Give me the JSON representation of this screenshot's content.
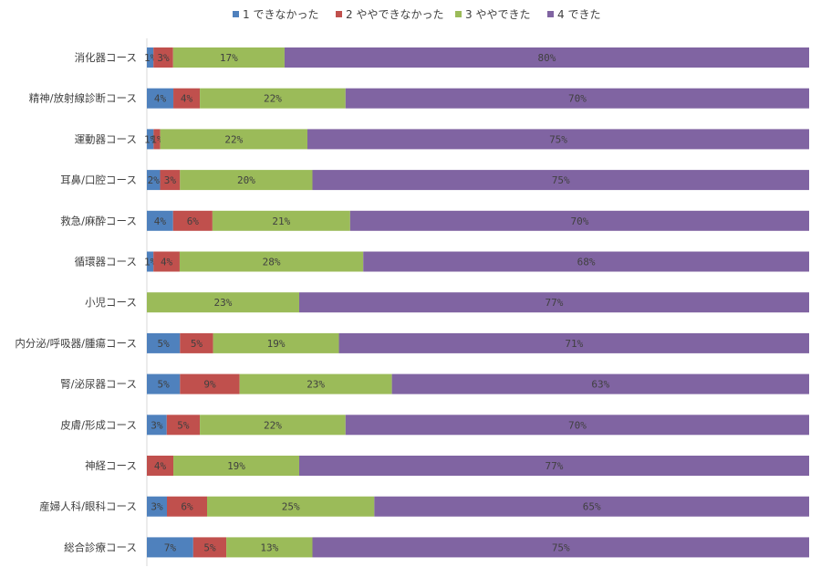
{
  "chart_data": {
    "type": "bar",
    "orientation": "horizontal",
    "stacked": "percent",
    "legend_position": "top",
    "grid": false,
    "categories": [
      "消化器コース",
      "精神/放射線診断コース",
      "運動器コース",
      "耳鼻/口腔コース",
      "救急/麻酔コース",
      "循環器コース",
      "小児コース",
      "内分泌/呼吸器/腫瘍コース",
      "腎/泌尿器コース",
      "皮膚/形成コース",
      "神経コース",
      "産婦人科/眼科コース",
      "総合診療コース"
    ],
    "series": [
      {
        "name": "1 できなかった",
        "color": "#4f81bd",
        "values": [
          1,
          4,
          1,
          2,
          4,
          1,
          0,
          5,
          5,
          3,
          0,
          3,
          7
        ],
        "labels": [
          "1%",
          "4%",
          "1%",
          "2%",
          "4%",
          "1%",
          "",
          "5%",
          "5%",
          "3%",
          "",
          "3%",
          "7%"
        ]
      },
      {
        "name": "2 ややできなかった",
        "color": "#c0504d",
        "values": [
          3,
          4,
          1,
          3,
          6,
          4,
          0,
          5,
          9,
          5,
          4,
          6,
          5
        ],
        "labels": [
          "3%",
          "4%",
          "1%",
          "3%",
          "6%",
          "4%",
          "",
          "5%",
          "9%",
          "5%",
          "4%",
          "6%",
          "5%"
        ]
      },
      {
        "name": "3 ややできた",
        "color": "#9bbb59",
        "values": [
          17,
          22,
          22,
          20,
          21,
          28,
          23,
          19,
          23,
          22,
          19,
          25,
          13
        ],
        "labels": [
          "17%",
          "22%",
          "22%",
          "20%",
          "21%",
          "28%",
          "23%",
          "19%",
          "23%",
          "22%",
          "19%",
          "25%",
          "13%"
        ]
      },
      {
        "name": "4 できた",
        "color": "#8064a2",
        "values": [
          80,
          70,
          75,
          75,
          70,
          68,
          77,
          71,
          63,
          70,
          77,
          65,
          75
        ],
        "labels": [
          "80%",
          "70%",
          "75%",
          "75%",
          "70%",
          "68%",
          "77%",
          "71%",
          "63%",
          "70%",
          "77%",
          "65%",
          "75%"
        ]
      }
    ]
  }
}
